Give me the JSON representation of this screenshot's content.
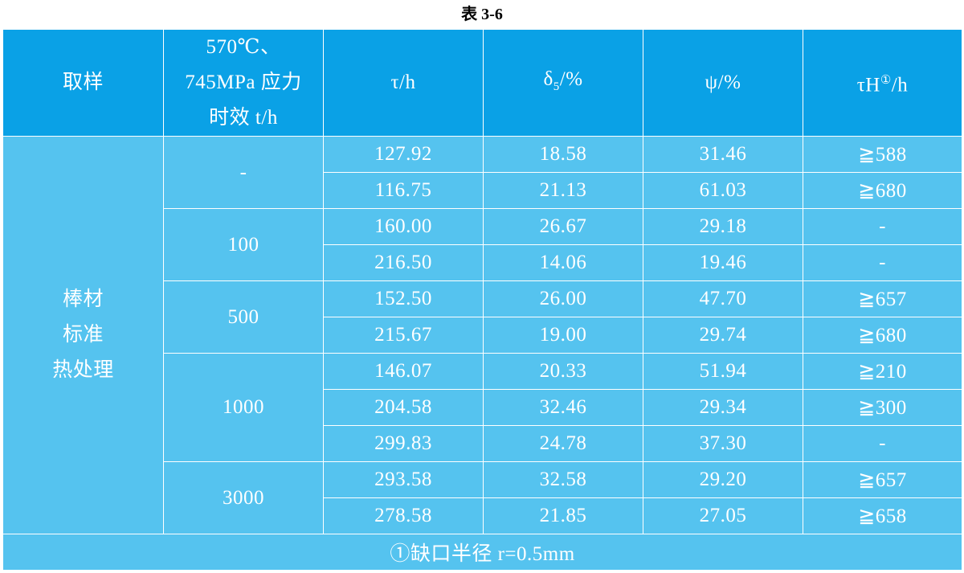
{
  "caption": "表 3-6",
  "headers": {
    "sample": "取样",
    "aging_line1": "570℃、",
    "aging_line2": "745MPa 应力",
    "aging_line3": "时效 t/h",
    "tau": "τ/h",
    "delta_base": "δ",
    "delta_sub": "5",
    "delta_unit": "/%",
    "psi": "ψ/%",
    "tauH_base": "τH",
    "tauH_sup": "①",
    "tauH_unit": "/h"
  },
  "sample_label": {
    "line1": "棒材",
    "line2": "标准",
    "line3": "热处理"
  },
  "groups": [
    "-",
    "100",
    "500",
    "1000",
    "3000"
  ],
  "rows": [
    {
      "tau": "127.92",
      "delta": "18.58",
      "psi": "31.46",
      "tauH": "≧588"
    },
    {
      "tau": "116.75",
      "delta": "21.13",
      "psi": "61.03",
      "tauH": "≧680"
    },
    {
      "tau": "160.00",
      "delta": "26.67",
      "psi": "29.18",
      "tauH": "-"
    },
    {
      "tau": "216.50",
      "delta": "14.06",
      "psi": "19.46",
      "tauH": "-"
    },
    {
      "tau": "152.50",
      "delta": "26.00",
      "psi": "47.70",
      "tauH": "≧657"
    },
    {
      "tau": "215.67",
      "delta": "19.00",
      "psi": "29.74",
      "tauH": "≧680"
    },
    {
      "tau": "146.07",
      "delta": "20.33",
      "psi": "51.94",
      "tauH": "≧210"
    },
    {
      "tau": "204.58",
      "delta": "32.46",
      "psi": "29.34",
      "tauH": "≧300"
    },
    {
      "tau": "299.83",
      "delta": "24.78",
      "psi": "37.30",
      "tauH": "-"
    },
    {
      "tau": "293.58",
      "delta": "32.58",
      "psi": "29.20",
      "tauH": "≧657"
    },
    {
      "tau": "278.58",
      "delta": "21.85",
      "psi": "27.05",
      "tauH": "≧658"
    }
  ],
  "footnote": "①缺口半径 r=0.5mm",
  "colors": {
    "header_bg": "#0aa1e6",
    "body_bg": "#55c3ef",
    "text": "#ffffff"
  }
}
